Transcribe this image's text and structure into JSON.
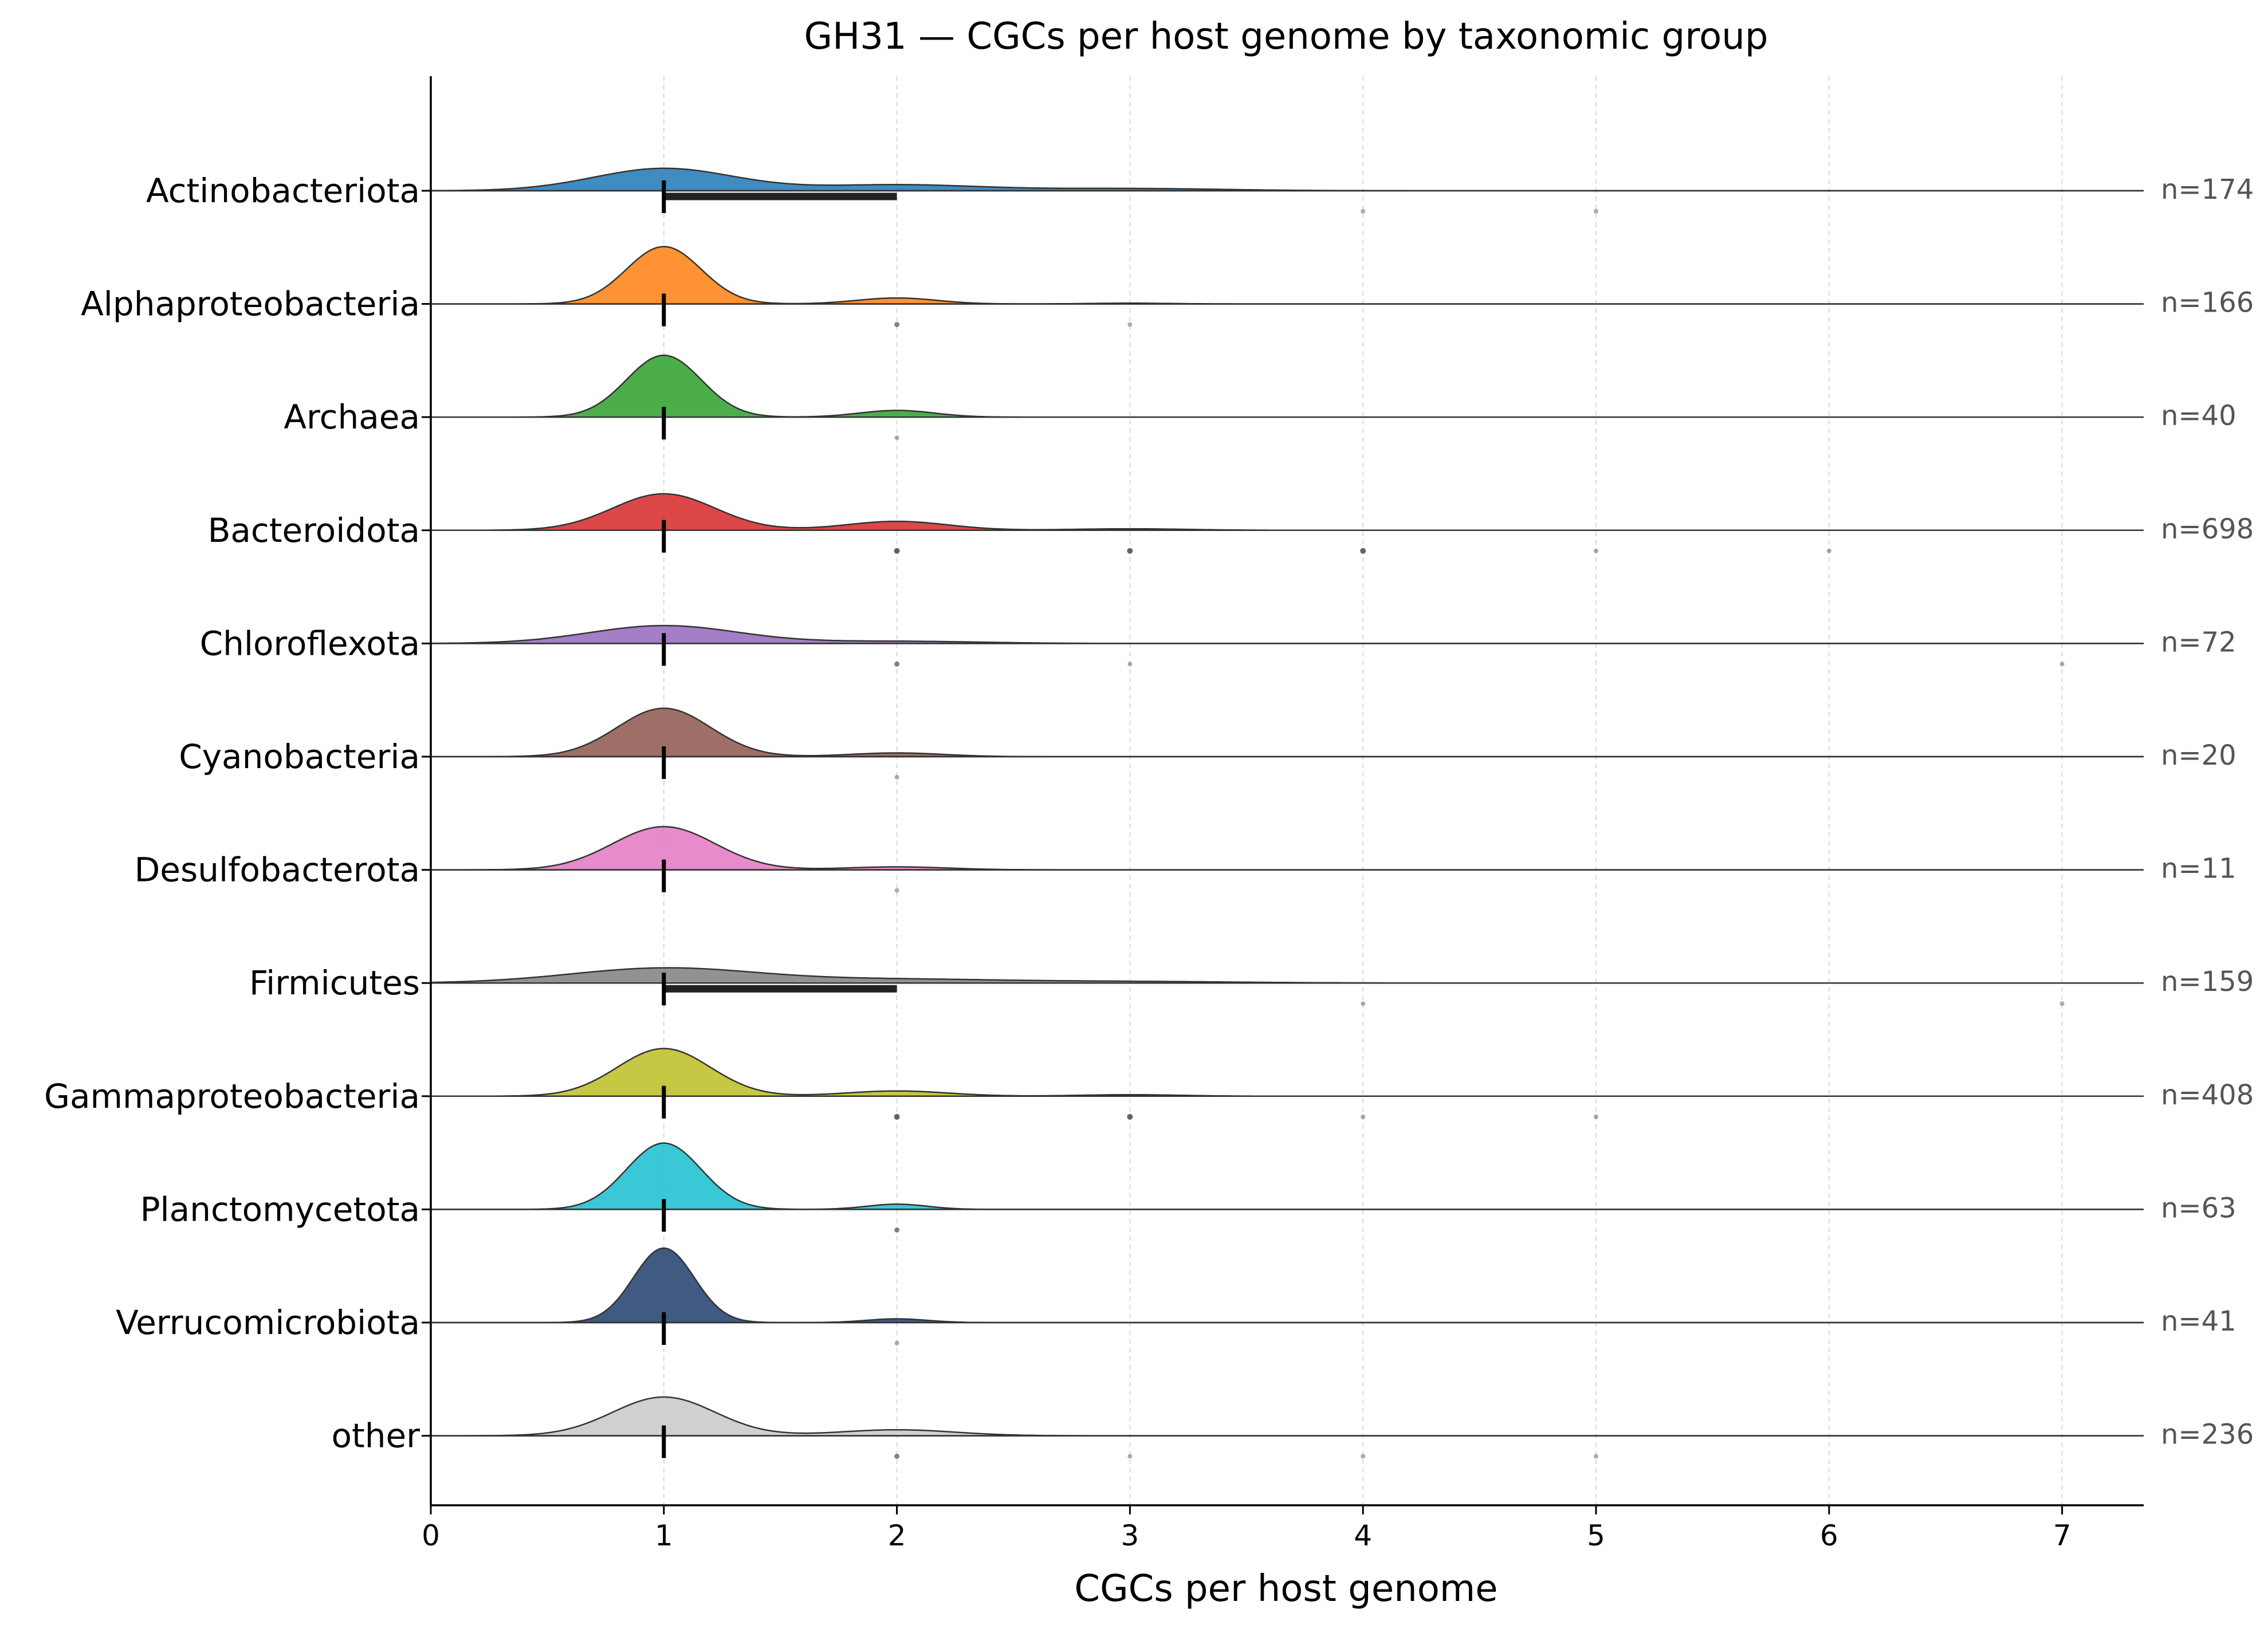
{
  "chart_data": {
    "type": "ridgeline",
    "title": "GH31 — CGCs per host genome by taxonomic group",
    "xlabel": "CGCs per host genome",
    "ylabel": "",
    "xlim": [
      0,
      7.35
    ],
    "xticks": [
      0,
      1,
      2,
      3,
      4,
      5,
      6,
      7
    ],
    "grid": "vertical dashed",
    "groups": [
      {
        "name": "Actinobacteriota",
        "n_label": "n=174",
        "n": 174,
        "color": "#1f77b4",
        "median": 1,
        "q1": 1,
        "q3": 2,
        "density": [
          {
            "x": 1,
            "height": 0.3,
            "width": 0.3
          },
          {
            "x": 2,
            "height": 0.08,
            "width": 0.35
          },
          {
            "x": 3,
            "height": 0.03,
            "width": 0.4
          }
        ],
        "outliers": [
          {
            "x": 4,
            "count": 1
          },
          {
            "x": 5,
            "count": 1
          }
        ]
      },
      {
        "name": "Alphaproteobacteria",
        "n_label": "n=166",
        "n": 166,
        "color": "#ff7f0e",
        "median": 1,
        "q1": 1,
        "q3": 1,
        "density": [
          {
            "x": 1,
            "height": 0.77,
            "width": 0.16
          },
          {
            "x": 2,
            "height": 0.08,
            "width": 0.17
          },
          {
            "x": 3,
            "height": 0.01,
            "width": 0.17
          }
        ],
        "outliers": [
          {
            "x": 2,
            "count": 2
          },
          {
            "x": 3,
            "count": 1
          }
        ]
      },
      {
        "name": "Archaea",
        "n_label": "n=40",
        "n": 40,
        "color": "#2ca02c",
        "median": 1,
        "q1": 1,
        "q3": 1,
        "density": [
          {
            "x": 1,
            "height": 0.83,
            "width": 0.16
          },
          {
            "x": 2,
            "height": 0.09,
            "width": 0.16
          }
        ],
        "outliers": [
          {
            "x": 2,
            "count": 1
          }
        ]
      },
      {
        "name": "Bacteroidota",
        "n_label": "n=698",
        "n": 698,
        "color": "#d62728",
        "median": 1,
        "q1": 1,
        "q3": 1,
        "density": [
          {
            "x": 1,
            "height": 0.49,
            "width": 0.22
          },
          {
            "x": 2,
            "height": 0.12,
            "width": 0.22
          },
          {
            "x": 3,
            "height": 0.02,
            "width": 0.25
          }
        ],
        "outliers": [
          {
            "x": 2,
            "count": 3
          },
          {
            "x": 3,
            "count": 3
          },
          {
            "x": 4,
            "count": 3
          },
          {
            "x": 5,
            "count": 1
          },
          {
            "x": 6,
            "count": 1
          }
        ]
      },
      {
        "name": "Chloroflexota",
        "n_label": "n=72",
        "n": 72,
        "color": "#9467bd",
        "median": 1,
        "q1": 1,
        "q3": 1,
        "density": [
          {
            "x": 1,
            "height": 0.24,
            "width": 0.32
          },
          {
            "x": 2,
            "height": 0.03,
            "width": 0.35
          }
        ],
        "outliers": [
          {
            "x": 2,
            "count": 2
          },
          {
            "x": 3,
            "count": 1
          },
          {
            "x": 7,
            "count": 1
          }
        ]
      },
      {
        "name": "Cyanobacteria",
        "n_label": "n=20",
        "n": 20,
        "color": "#8c564b",
        "median": 1,
        "q1": 1,
        "q3": 1,
        "density": [
          {
            "x": 1,
            "height": 0.65,
            "width": 0.2
          },
          {
            "x": 2,
            "height": 0.05,
            "width": 0.2
          }
        ],
        "outliers": [
          {
            "x": 2,
            "count": 1
          }
        ]
      },
      {
        "name": "Desulfobacterota",
        "n_label": "n=11",
        "n": 11,
        "color": "#e377c2",
        "median": 1,
        "q1": 1,
        "q3": 1,
        "density": [
          {
            "x": 1,
            "height": 0.58,
            "width": 0.22
          },
          {
            "x": 2,
            "height": 0.04,
            "width": 0.22
          }
        ],
        "outliers": [
          {
            "x": 2,
            "count": 1
          }
        ]
      },
      {
        "name": "Firmicutes",
        "n_label": "n=159",
        "n": 159,
        "color": "#7f7f7f",
        "median": 1,
        "q1": 1,
        "q3": 2,
        "density": [
          {
            "x": 1,
            "height": 0.2,
            "width": 0.4
          },
          {
            "x": 2,
            "height": 0.05,
            "width": 0.45
          },
          {
            "x": 3,
            "height": 0.02,
            "width": 0.45
          }
        ],
        "outliers": [
          {
            "x": 4,
            "count": 1
          },
          {
            "x": 7,
            "count": 1
          }
        ]
      },
      {
        "name": "Gammaproteobacteria",
        "n_label": "n=408",
        "n": 408,
        "color": "#bcbd22",
        "median": 1,
        "q1": 1,
        "q3": 1,
        "density": [
          {
            "x": 1,
            "height": 0.64,
            "width": 0.2
          },
          {
            "x": 2,
            "height": 0.07,
            "width": 0.22
          },
          {
            "x": 3,
            "height": 0.02,
            "width": 0.22
          }
        ],
        "outliers": [
          {
            "x": 2,
            "count": 3
          },
          {
            "x": 3,
            "count": 3
          },
          {
            "x": 4,
            "count": 1
          },
          {
            "x": 5,
            "count": 1
          }
        ]
      },
      {
        "name": "Planctomycetota",
        "n_label": "n=63",
        "n": 63,
        "color": "#17becf",
        "median": 1,
        "q1": 1,
        "q3": 1,
        "density": [
          {
            "x": 1,
            "height": 0.89,
            "width": 0.16
          },
          {
            "x": 2,
            "height": 0.07,
            "width": 0.13
          }
        ],
        "outliers": [
          {
            "x": 2,
            "count": 2
          }
        ]
      },
      {
        "name": "Verrucomicrobiota",
        "n_label": "n=41",
        "n": 41,
        "color": "#1f3d6b",
        "median": 1,
        "q1": 1,
        "q3": 1,
        "density": [
          {
            "x": 1,
            "height": 1.0,
            "width": 0.13
          },
          {
            "x": 2,
            "height": 0.05,
            "width": 0.13
          }
        ],
        "outliers": [
          {
            "x": 2,
            "count": 1
          }
        ]
      },
      {
        "name": "other",
        "n_label": "n=236",
        "n": 236,
        "color": "#c8c8c8",
        "median": 1,
        "q1": 1,
        "q3": 1,
        "density": [
          {
            "x": 1,
            "height": 0.52,
            "width": 0.22
          },
          {
            "x": 2,
            "height": 0.08,
            "width": 0.25
          }
        ],
        "outliers": [
          {
            "x": 2,
            "count": 2
          },
          {
            "x": 3,
            "count": 1
          },
          {
            "x": 4,
            "count": 1
          },
          {
            "x": 5,
            "count": 1
          }
        ]
      }
    ]
  }
}
